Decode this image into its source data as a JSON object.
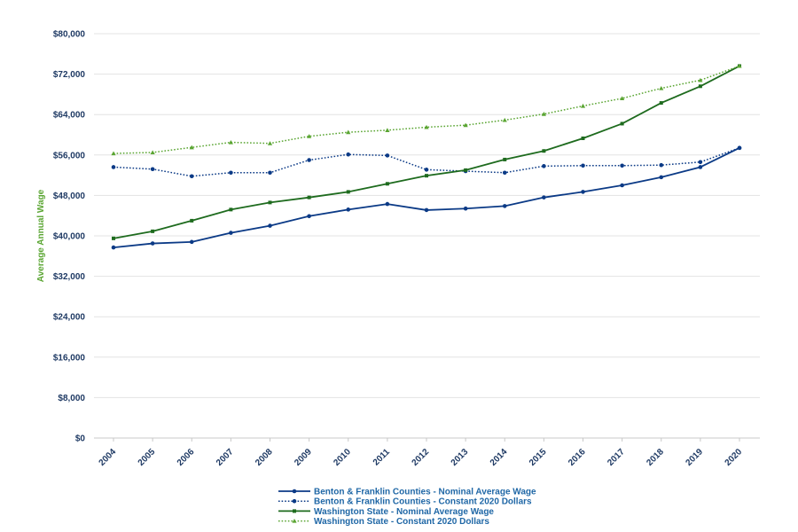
{
  "chart_data": {
    "type": "line",
    "title": "",
    "xlabel": "",
    "ylabel": "Average Annual Wage",
    "x": [
      "2004",
      "2005",
      "2006",
      "2007",
      "2008",
      "2009",
      "2010",
      "2011",
      "2012",
      "2013",
      "2014",
      "2015",
      "2016",
      "2017",
      "2018",
      "2019",
      "2020"
    ],
    "ylim": [
      0,
      80000
    ],
    "y_ticks": [
      0,
      8000,
      16000,
      24000,
      32000,
      40000,
      48000,
      56000,
      64000,
      72000,
      80000
    ],
    "y_tick_labels": [
      "$0",
      "$8,000",
      "$16,000",
      "$24,000",
      "$32,000",
      "$40,000",
      "$48,000",
      "$56,000",
      "$64,000",
      "$72,000",
      "$80,000"
    ],
    "grid": "horizontal",
    "legend_position": "bottom-center",
    "series": [
      {
        "name": "Benton & Franklin Counties - Nominal Average Wage",
        "color": "#0b3a86",
        "dash": "solid",
        "marker": "circle",
        "values": [
          37700,
          38500,
          38800,
          40600,
          42000,
          43900,
          45200,
          46300,
          45100,
          45400,
          45900,
          47600,
          48700,
          50000,
          51600,
          53600,
          57400
        ]
      },
      {
        "name": "Benton & Franklin Counties - Constant 2020 Dollars",
        "color": "#0b3a86",
        "dash": "dotted",
        "marker": "circle",
        "values": [
          53600,
          53200,
          51800,
          52500,
          52500,
          55000,
          56100,
          55900,
          53100,
          52800,
          52500,
          53800,
          53900,
          53900,
          54000,
          54600,
          57400
        ]
      },
      {
        "name": "Washington State - Nominal Average Wage",
        "color": "#1e6b1e",
        "dash": "solid",
        "marker": "square",
        "values": [
          39500,
          40900,
          43000,
          45200,
          46600,
          47600,
          48700,
          50300,
          51900,
          53000,
          55100,
          56800,
          59300,
          62200,
          66300,
          69600,
          73600
        ]
      },
      {
        "name": "Washington State - Constant 2020 Dollars",
        "color": "#5aa532",
        "dash": "dotted",
        "marker": "triangle",
        "values": [
          56300,
          56500,
          57500,
          58500,
          58300,
          59700,
          60500,
          60900,
          61500,
          61900,
          62900,
          64100,
          65700,
          67200,
          69200,
          70800,
          73600
        ]
      }
    ]
  }
}
